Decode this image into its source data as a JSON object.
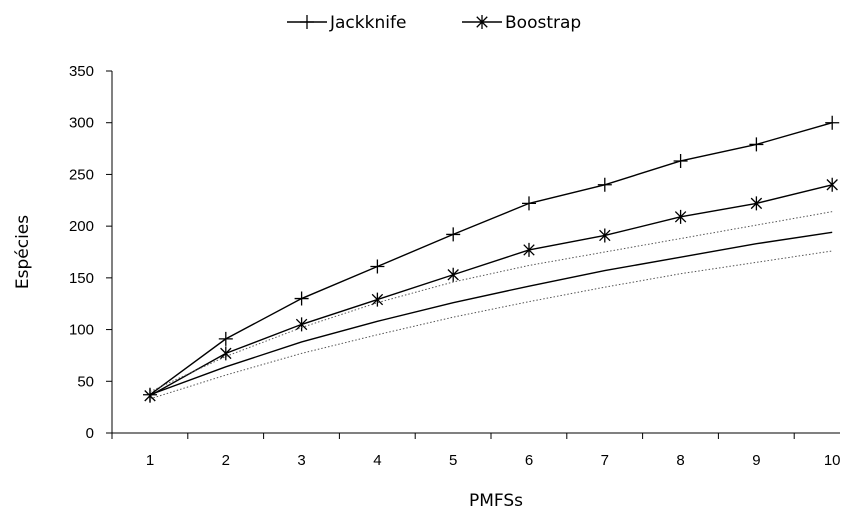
{
  "chart_data": {
    "type": "line",
    "xlabel": "PMFSs",
    "ylabel": "Espécies",
    "x": [
      1,
      2,
      3,
      4,
      5,
      6,
      7,
      8,
      9,
      10
    ],
    "xticks": [
      "1",
      "2",
      "3",
      "4",
      "5",
      "6",
      "7",
      "8",
      "9",
      "10"
    ],
    "yticks": [
      "0",
      "50",
      "100",
      "150",
      "200",
      "250",
      "300",
      "350"
    ],
    "ylim": [
      0,
      350
    ],
    "legend_position": "top-center",
    "series": [
      {
        "name": "Jackknife",
        "marker": "plus",
        "style": "solid",
        "color": "#000000",
        "values": [
          37,
          91,
          130,
          161,
          192,
          222,
          240,
          263,
          279,
          300
        ]
      },
      {
        "name": "Boostrap",
        "marker": "asterisk",
        "style": "solid",
        "color": "#000000",
        "values": [
          36,
          77,
          105,
          129,
          153,
          177,
          191,
          209,
          222,
          240
        ]
      },
      {
        "marker": "none",
        "style": "solid",
        "color": "#000000",
        "values": [
          37,
          64,
          88,
          108,
          126,
          142,
          157,
          170,
          183,
          194
        ]
      },
      {
        "marker": "none",
        "style": "dotted",
        "color": "#555555",
        "values": [
          40,
          74,
          102,
          126,
          146,
          162,
          175,
          188,
          201,
          214
        ]
      },
      {
        "marker": "none",
        "style": "dotted",
        "color": "#555555",
        "values": [
          33,
          56,
          77,
          95,
          112,
          127,
          141,
          154,
          165,
          176
        ]
      }
    ]
  }
}
